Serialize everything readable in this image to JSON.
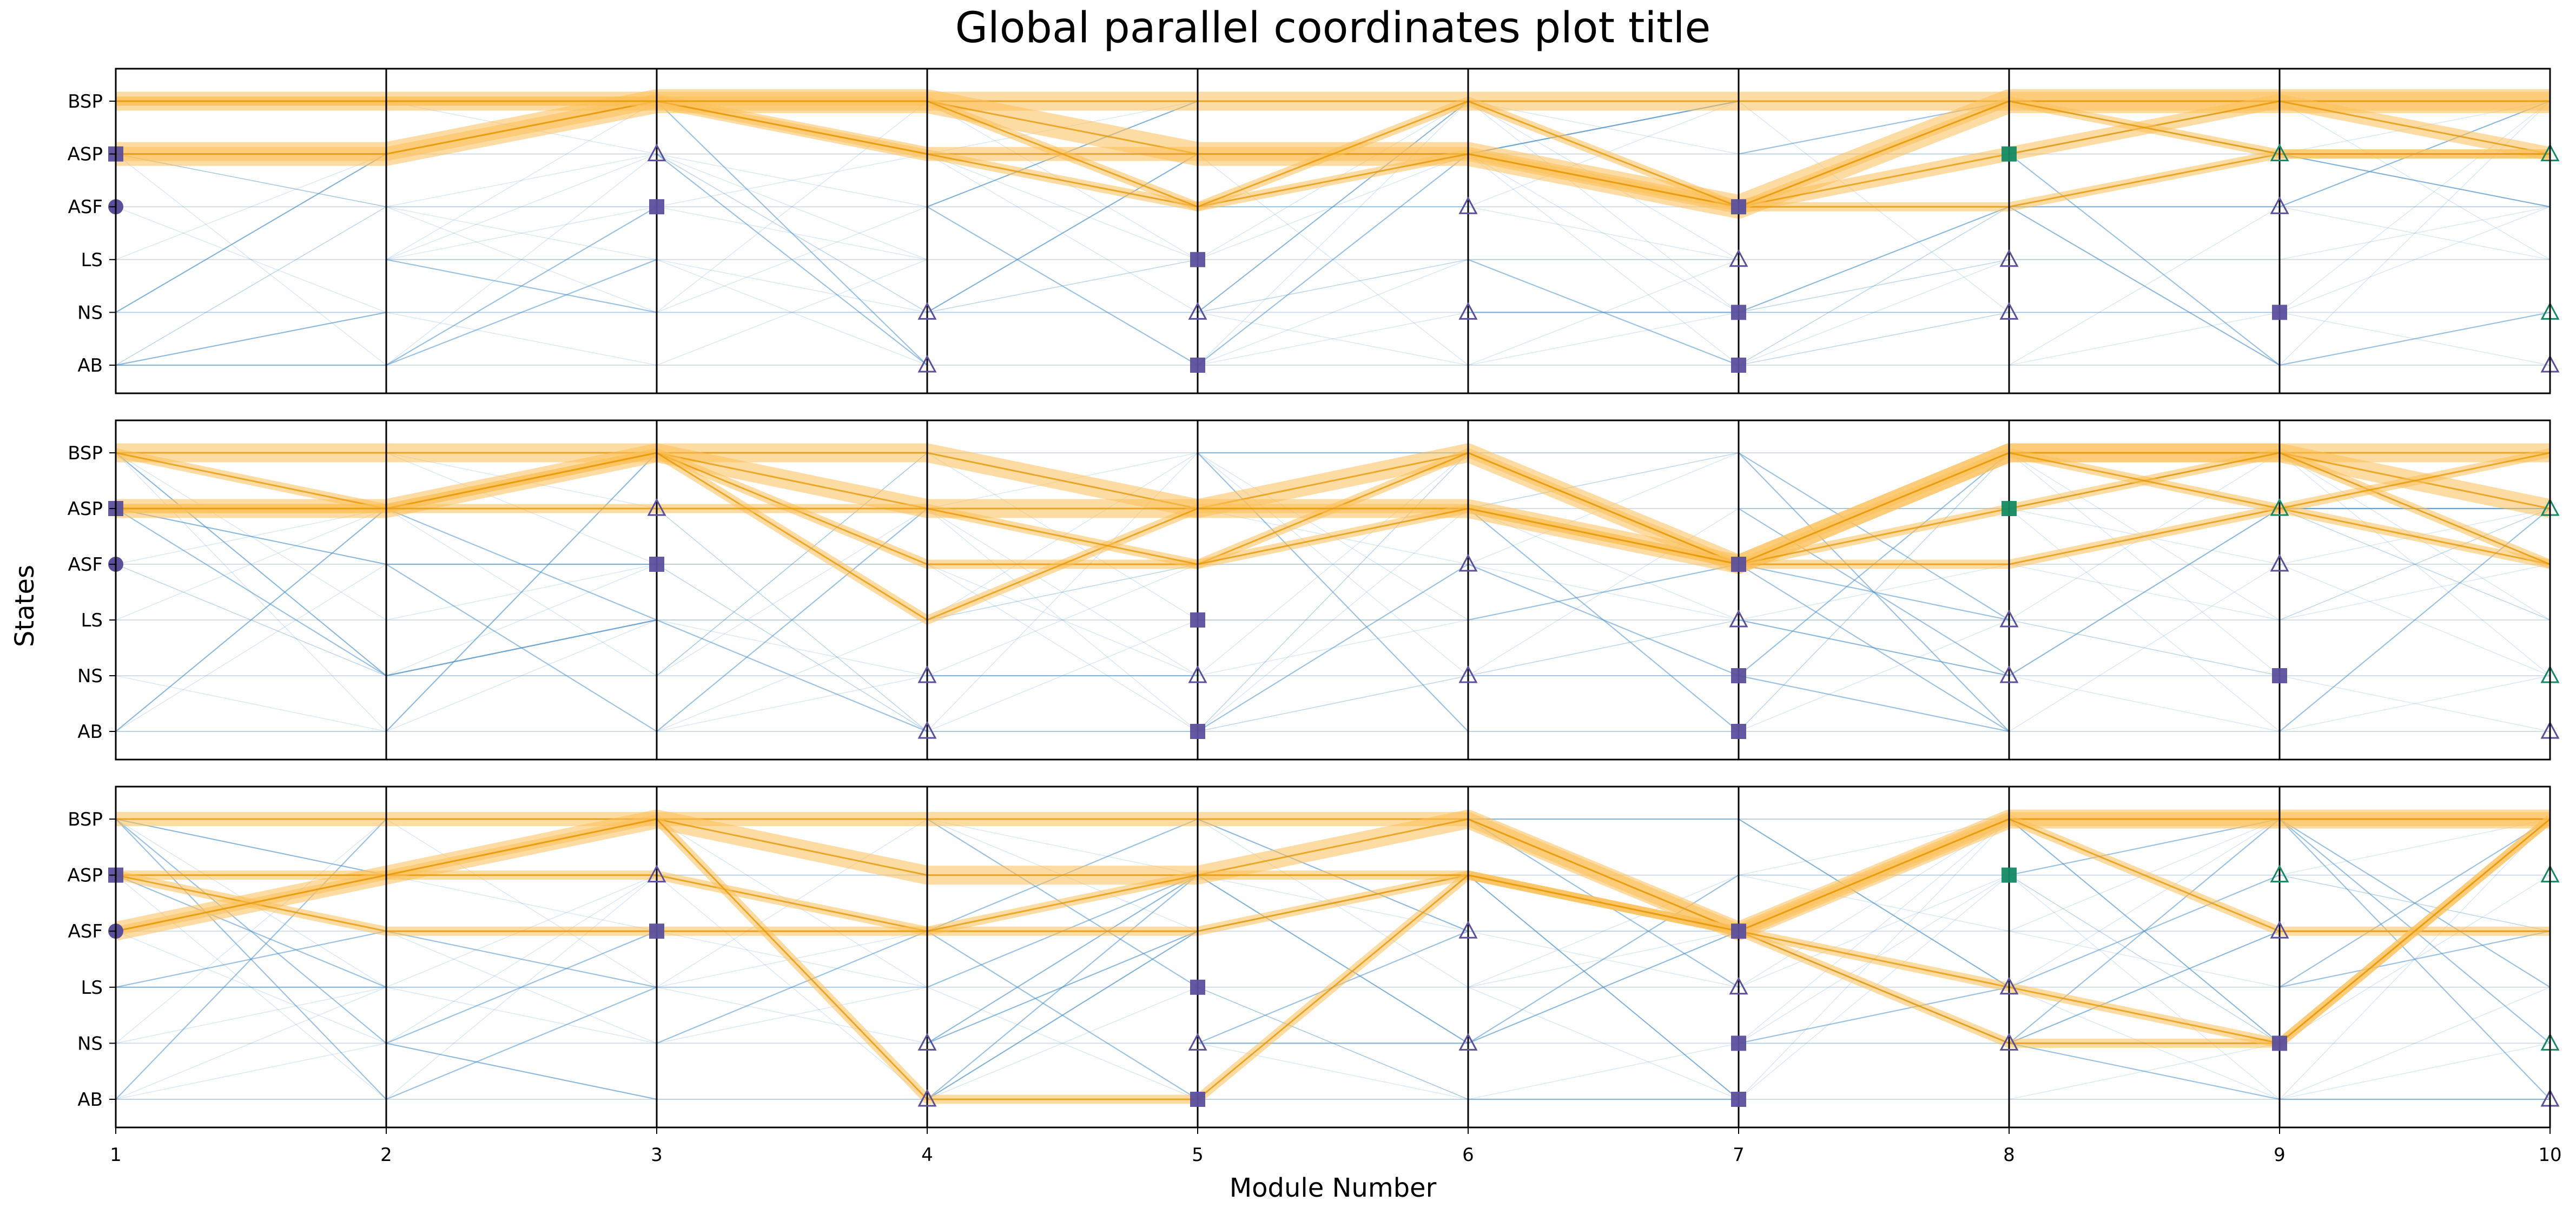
{
  "chart_data": {
    "type": "parallel-coordinates",
    "title": "Global parallel coordinates plot title",
    "xlabel": "Module Number",
    "ylabel": "States",
    "x_ticks": [
      "1",
      "2",
      "3",
      "4",
      "5",
      "6",
      "7",
      "8",
      "9",
      "10"
    ],
    "y_ticks": [
      "BSP",
      "ASP",
      "ASF",
      "LS",
      "NS",
      "AB"
    ],
    "grid": true,
    "colors": {
      "highlight_band": "#fbbf57",
      "highlight_line": "#e69500",
      "background_line": "#4a90c8",
      "marker_purple": "#5b4f9c",
      "marker_green": "#138a63",
      "axis": "#000000",
      "gridline": "#d5dde6"
    },
    "panels": [
      {
        "highlighted_paths": [
          {
            "states": [
              "BSP",
              "BSP",
              "BSP",
              "BSP",
              "BSP",
              "BSP",
              "BSP",
              "BSP",
              "BSP",
              "BSP"
            ],
            "weight": 3
          },
          {
            "states": [
              "ASP",
              "ASP",
              "BSP",
              "BSP",
              "ASP",
              "ASP",
              "ASF",
              "BSP",
              "BSP",
              "BSP"
            ],
            "weight": 4
          },
          {
            "states": [
              "ASP",
              "ASP",
              "BSP",
              "ASP",
              "ASP",
              "ASP",
              "ASF",
              "ASP",
              "BSP",
              "ASP"
            ],
            "weight": 2
          },
          {
            "states": [
              "BSP",
              "BSP",
              "BSP",
              "ASP",
              "ASF",
              "ASP",
              "ASF",
              "ASF",
              "ASP",
              "ASP"
            ],
            "weight": 1
          },
          {
            "states": [
              "BSP",
              "BSP",
              "BSP",
              "BSP",
              "ASF",
              "BSP",
              "ASF",
              "BSP",
              "ASP",
              "ASP"
            ],
            "weight": 1
          }
        ],
        "markers": [
          {
            "module": 1,
            "state": "ASP",
            "shape": "square",
            "color": "purple"
          },
          {
            "module": 1,
            "state": "ASF",
            "shape": "circle",
            "color": "purple"
          },
          {
            "module": 3,
            "state": "ASP",
            "shape": "triangle",
            "color": "purple"
          },
          {
            "module": 3,
            "state": "ASF",
            "shape": "square",
            "color": "purple"
          },
          {
            "module": 4,
            "state": "NS",
            "shape": "triangle",
            "color": "purple"
          },
          {
            "module": 4,
            "state": "AB",
            "shape": "triangle",
            "color": "purple"
          },
          {
            "module": 5,
            "state": "LS",
            "shape": "square",
            "color": "purple"
          },
          {
            "module": 5,
            "state": "NS",
            "shape": "triangle",
            "color": "purple"
          },
          {
            "module": 5,
            "state": "AB",
            "shape": "square",
            "color": "purple"
          },
          {
            "module": 6,
            "state": "ASF",
            "shape": "triangle",
            "color": "purple"
          },
          {
            "module": 6,
            "state": "NS",
            "shape": "triangle",
            "color": "purple"
          },
          {
            "module": 7,
            "state": "ASF",
            "shape": "square",
            "color": "purple"
          },
          {
            "module": 7,
            "state": "LS",
            "shape": "triangle",
            "color": "purple"
          },
          {
            "module": 7,
            "state": "NS",
            "shape": "square",
            "color": "purple"
          },
          {
            "module": 7,
            "state": "AB",
            "shape": "square",
            "color": "purple"
          },
          {
            "module": 8,
            "state": "ASP",
            "shape": "square",
            "color": "green"
          },
          {
            "module": 8,
            "state": "LS",
            "shape": "triangle",
            "color": "purple"
          },
          {
            "module": 8,
            "state": "NS",
            "shape": "triangle",
            "color": "purple"
          },
          {
            "module": 9,
            "state": "ASP",
            "shape": "triangle",
            "color": "green"
          },
          {
            "module": 9,
            "state": "ASF",
            "shape": "triangle",
            "color": "purple"
          },
          {
            "module": 9,
            "state": "NS",
            "shape": "square",
            "color": "purple"
          },
          {
            "module": 10,
            "state": "ASP",
            "shape": "triangle",
            "color": "green"
          },
          {
            "module": 10,
            "state": "NS",
            "shape": "triangle",
            "color": "green"
          },
          {
            "module": 10,
            "state": "AB",
            "shape": "triangle",
            "color": "purple"
          }
        ]
      },
      {
        "highlighted_paths": [
          {
            "states": [
              "BSP",
              "BSP",
              "BSP",
              "BSP",
              "ASP",
              "BSP",
              "ASF",
              "BSP",
              "BSP",
              "BSP"
            ],
            "weight": 3
          },
          {
            "states": [
              "ASP",
              "ASP",
              "BSP",
              "ASP",
              "ASP",
              "ASP",
              "ASF",
              "BSP",
              "BSP",
              "ASP"
            ],
            "weight": 3
          },
          {
            "states": [
              "BSP",
              "ASP",
              "BSP",
              "ASF",
              "ASF",
              "BSP",
              "ASF",
              "ASF",
              "ASP",
              "ASF"
            ],
            "weight": 1
          },
          {
            "states": [
              "ASP",
              "ASP",
              "BSP",
              "LS",
              "ASP",
              "ASP",
              "ASF",
              "ASP",
              "BSP",
              "ASF"
            ],
            "weight": 1
          },
          {
            "states": [
              "ASP",
              "ASP",
              "ASP",
              "ASP",
              "ASF",
              "ASP",
              "ASF",
              "BSP",
              "ASP",
              "BSP"
            ],
            "weight": 1
          }
        ],
        "markers": [
          {
            "module": 1,
            "state": "ASP",
            "shape": "square",
            "color": "purple"
          },
          {
            "module": 1,
            "state": "ASF",
            "shape": "circle",
            "color": "purple"
          },
          {
            "module": 3,
            "state": "ASP",
            "shape": "triangle",
            "color": "purple"
          },
          {
            "module": 3,
            "state": "ASF",
            "shape": "square",
            "color": "purple"
          },
          {
            "module": 4,
            "state": "NS",
            "shape": "triangle",
            "color": "purple"
          },
          {
            "module": 4,
            "state": "AB",
            "shape": "triangle",
            "color": "purple"
          },
          {
            "module": 5,
            "state": "LS",
            "shape": "square",
            "color": "purple"
          },
          {
            "module": 5,
            "state": "NS",
            "shape": "triangle",
            "color": "purple"
          },
          {
            "module": 5,
            "state": "AB",
            "shape": "square",
            "color": "purple"
          },
          {
            "module": 6,
            "state": "ASF",
            "shape": "triangle",
            "color": "purple"
          },
          {
            "module": 6,
            "state": "NS",
            "shape": "triangle",
            "color": "purple"
          },
          {
            "module": 7,
            "state": "ASF",
            "shape": "square",
            "color": "purple"
          },
          {
            "module": 7,
            "state": "LS",
            "shape": "triangle",
            "color": "purple"
          },
          {
            "module": 7,
            "state": "NS",
            "shape": "square",
            "color": "purple"
          },
          {
            "module": 7,
            "state": "AB",
            "shape": "square",
            "color": "purple"
          },
          {
            "module": 8,
            "state": "ASP",
            "shape": "square",
            "color": "green"
          },
          {
            "module": 8,
            "state": "LS",
            "shape": "triangle",
            "color": "purple"
          },
          {
            "module": 8,
            "state": "NS",
            "shape": "triangle",
            "color": "purple"
          },
          {
            "module": 9,
            "state": "ASP",
            "shape": "triangle",
            "color": "green"
          },
          {
            "module": 9,
            "state": "ASF",
            "shape": "triangle",
            "color": "purple"
          },
          {
            "module": 9,
            "state": "NS",
            "shape": "square",
            "color": "purple"
          },
          {
            "module": 10,
            "state": "ASP",
            "shape": "triangle",
            "color": "green"
          },
          {
            "module": 10,
            "state": "NS",
            "shape": "triangle",
            "color": "green"
          },
          {
            "module": 10,
            "state": "AB",
            "shape": "triangle",
            "color": "purple"
          }
        ]
      },
      {
        "highlighted_paths": [
          {
            "states": [
              "BSP",
              "BSP",
              "BSP",
              "BSP",
              "BSP",
              "BSP",
              "ASF",
              "BSP",
              "BSP",
              "BSP"
            ],
            "weight": 2
          },
          {
            "states": [
              "ASF",
              "ASP",
              "BSP",
              "ASP",
              "ASP",
              "BSP",
              "ASF",
              "BSP",
              "BSP",
              "BSP"
            ],
            "weight": 3
          },
          {
            "states": [
              "ASP",
              "ASP",
              "ASP",
              "ASF",
              "ASF",
              "ASP",
              "ASF",
              "BSP",
              "ASF",
              "ASF"
            ],
            "weight": 1
          },
          {
            "states": [
              "ASP",
              "ASF",
              "ASF",
              "ASF",
              "ASP",
              "ASP",
              "ASF",
              "NS",
              "NS",
              "BSP"
            ],
            "weight": 1
          },
          {
            "states": [
              "ASF",
              "ASP",
              "BSP",
              "AB",
              "AB",
              "ASP",
              "ASF",
              "LS",
              "NS",
              "BSP"
            ],
            "weight": 1
          }
        ],
        "markers": [
          {
            "module": 1,
            "state": "ASP",
            "shape": "square",
            "color": "purple"
          },
          {
            "module": 1,
            "state": "ASF",
            "shape": "circle",
            "color": "purple"
          },
          {
            "module": 3,
            "state": "ASP",
            "shape": "triangle",
            "color": "purple"
          },
          {
            "module": 3,
            "state": "ASF",
            "shape": "square",
            "color": "purple"
          },
          {
            "module": 4,
            "state": "NS",
            "shape": "triangle",
            "color": "purple"
          },
          {
            "module": 4,
            "state": "AB",
            "shape": "triangle",
            "color": "purple"
          },
          {
            "module": 5,
            "state": "LS",
            "shape": "square",
            "color": "purple"
          },
          {
            "module": 5,
            "state": "NS",
            "shape": "triangle",
            "color": "purple"
          },
          {
            "module": 5,
            "state": "AB",
            "shape": "square",
            "color": "purple"
          },
          {
            "module": 6,
            "state": "ASF",
            "shape": "triangle",
            "color": "purple"
          },
          {
            "module": 6,
            "state": "NS",
            "shape": "triangle",
            "color": "purple"
          },
          {
            "module": 7,
            "state": "ASF",
            "shape": "square",
            "color": "purple"
          },
          {
            "module": 7,
            "state": "LS",
            "shape": "triangle",
            "color": "purple"
          },
          {
            "module": 7,
            "state": "NS",
            "shape": "square",
            "color": "purple"
          },
          {
            "module": 7,
            "state": "AB",
            "shape": "square",
            "color": "purple"
          },
          {
            "module": 8,
            "state": "ASP",
            "shape": "square",
            "color": "green"
          },
          {
            "module": 8,
            "state": "LS",
            "shape": "triangle",
            "color": "purple"
          },
          {
            "module": 8,
            "state": "NS",
            "shape": "triangle",
            "color": "purple"
          },
          {
            "module": 9,
            "state": "ASP",
            "shape": "triangle",
            "color": "green"
          },
          {
            "module": 9,
            "state": "ASF",
            "shape": "triangle",
            "color": "purple"
          },
          {
            "module": 9,
            "state": "NS",
            "shape": "square",
            "color": "purple"
          },
          {
            "module": 10,
            "state": "ASP",
            "shape": "triangle",
            "color": "green"
          },
          {
            "module": 10,
            "state": "NS",
            "shape": "triangle",
            "color": "green"
          },
          {
            "module": 10,
            "state": "AB",
            "shape": "triangle",
            "color": "purple"
          }
        ]
      }
    ]
  }
}
